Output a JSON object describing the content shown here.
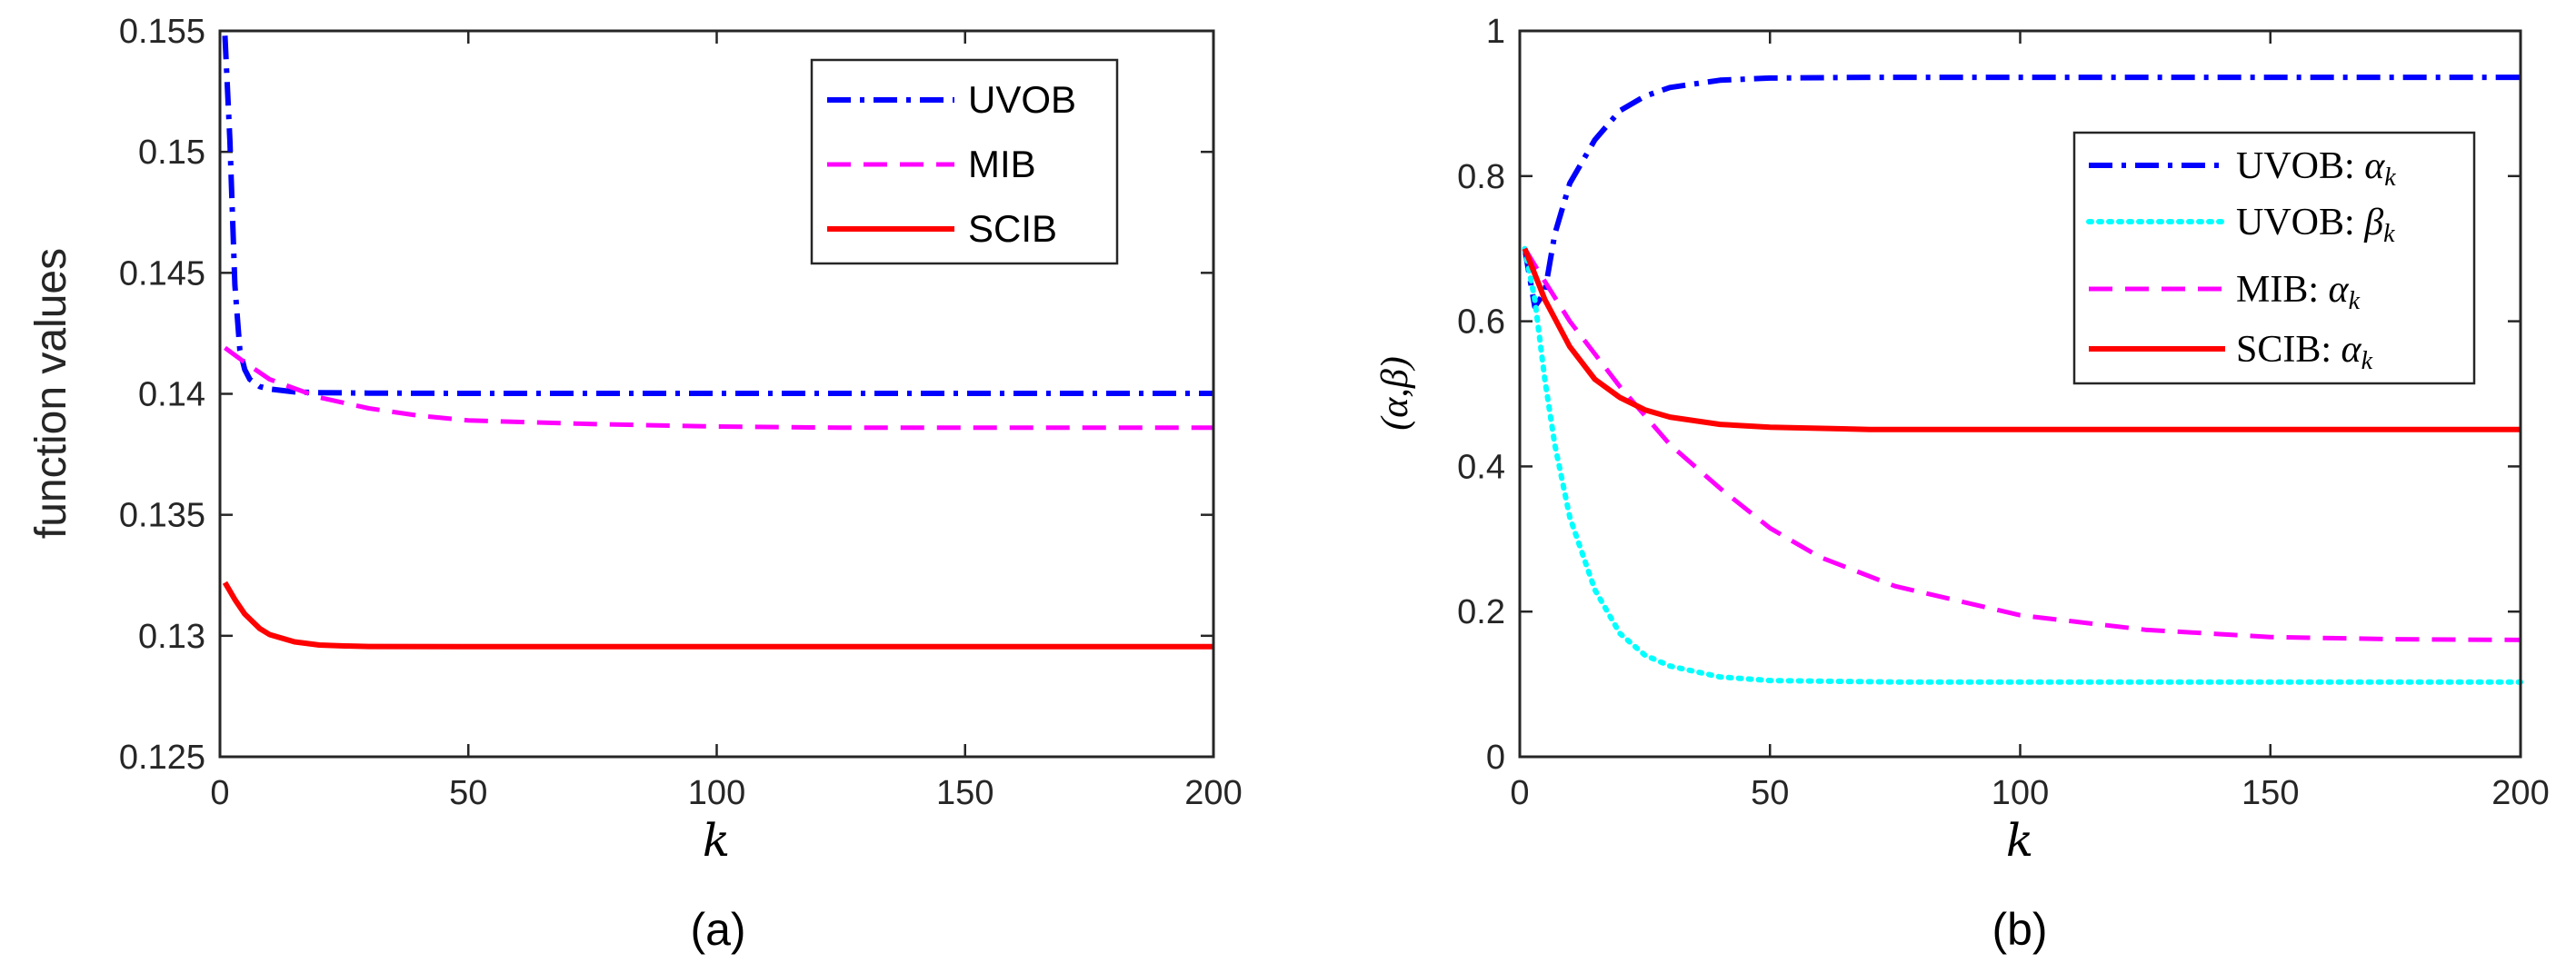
{
  "chart_data": [
    {
      "id": "a",
      "type": "line",
      "caption": "(a)",
      "xlabel": "k",
      "ylabel": "function values",
      "xlim": [
        0,
        200
      ],
      "ylim": [
        0.125,
        0.155
      ],
      "xticks": [
        0,
        50,
        100,
        150,
        200
      ],
      "xtick_labels": [
        "0",
        "50",
        "100",
        "150",
        "200"
      ],
      "yticks": [
        0.125,
        0.13,
        0.135,
        0.14,
        0.145,
        0.15,
        0.155
      ],
      "ytick_labels": [
        "0.125",
        "0.13",
        "0.135",
        "0.14",
        "0.145",
        "0.15",
        "0.155"
      ],
      "legend_position": "top-right",
      "series": [
        {
          "name": "UVOB",
          "legend_label": "UVOB",
          "color": "#0000ff",
          "style": "dashdot",
          "x": [
            1,
            2,
            3,
            4,
            5,
            6,
            8,
            10,
            15,
            20,
            30,
            50,
            100,
            150,
            200
          ],
          "y": [
            0.1548,
            0.1505,
            0.1445,
            0.1418,
            0.141,
            0.1406,
            0.1403,
            0.1402,
            0.14008,
            0.14005,
            0.14003,
            0.14002,
            0.14002,
            0.14002,
            0.14002
          ]
        },
        {
          "name": "MIB",
          "legend_label": "MIB",
          "color": "#ff00ff",
          "style": "dashed",
          "x": [
            1,
            5,
            10,
            20,
            30,
            40,
            50,
            75,
            100,
            125,
            150,
            175,
            200
          ],
          "y": [
            0.1419,
            0.1413,
            0.1406,
            0.13985,
            0.1394,
            0.1391,
            0.1389,
            0.13875,
            0.13865,
            0.1386,
            0.1386,
            0.1386,
            0.1386
          ]
        },
        {
          "name": "SCIB",
          "legend_label": "SCIB",
          "color": "#ff0000",
          "style": "solid",
          "x": [
            1,
            3,
            5,
            8,
            10,
            15,
            20,
            25,
            30,
            50,
            100,
            150,
            200
          ],
          "y": [
            0.1322,
            0.1315,
            0.1309,
            0.1303,
            0.13005,
            0.12975,
            0.12962,
            0.12958,
            0.12956,
            0.12955,
            0.12955,
            0.12955,
            0.12955
          ]
        }
      ]
    },
    {
      "id": "b",
      "type": "line",
      "caption": "(b)",
      "xlabel": "k",
      "ylabel": "(α,β)",
      "xlim": [
        0,
        200
      ],
      "ylim": [
        0,
        1
      ],
      "xticks": [
        0,
        50,
        100,
        150,
        200
      ],
      "xtick_labels": [
        "0",
        "50",
        "100",
        "150",
        "200"
      ],
      "yticks": [
        0,
        0.2,
        0.4,
        0.6,
        0.8,
        1
      ],
      "ytick_labels": [
        "0",
        "0.2",
        "0.4",
        "0.6",
        "0.8",
        "1"
      ],
      "legend_position": "top-right",
      "series": [
        {
          "name": "UVOB alpha",
          "legend_label": "UVOB: ",
          "legend_symbol": "α",
          "legend_sub": "k",
          "color": "#0000ff",
          "style": "dashdot",
          "x": [
            1,
            3,
            5,
            7,
            10,
            15,
            20,
            25,
            30,
            40,
            50,
            70,
            100,
            150,
            200
          ],
          "y": [
            0.7,
            0.62,
            0.64,
            0.72,
            0.79,
            0.85,
            0.89,
            0.91,
            0.922,
            0.932,
            0.935,
            0.936,
            0.936,
            0.936,
            0.936
          ]
        },
        {
          "name": "UVOB beta",
          "legend_label": "UVOB: ",
          "legend_symbol": "β",
          "legend_sub": "k",
          "color": "#00ffff",
          "style": "dotted",
          "x": [
            1,
            3,
            5,
            7,
            10,
            15,
            20,
            25,
            30,
            40,
            50,
            75,
            100,
            150,
            200
          ],
          "y": [
            0.7,
            0.63,
            0.52,
            0.43,
            0.33,
            0.23,
            0.17,
            0.14,
            0.125,
            0.11,
            0.105,
            0.103,
            0.103,
            0.103,
            0.103
          ]
        },
        {
          "name": "MIB alpha",
          "legend_label": "MIB: ",
          "legend_symbol": "α",
          "legend_sub": "k",
          "color": "#ff00ff",
          "style": "dashed",
          "x": [
            1,
            5,
            10,
            20,
            30,
            40,
            50,
            60,
            75,
            100,
            125,
            150,
            175,
            200
          ],
          "y": [
            0.7,
            0.655,
            0.6,
            0.51,
            0.43,
            0.37,
            0.315,
            0.275,
            0.235,
            0.195,
            0.175,
            0.165,
            0.162,
            0.161
          ]
        },
        {
          "name": "SCIB alpha",
          "legend_label": "SCIB: ",
          "legend_symbol": "α",
          "legend_sub": "k",
          "color": "#ff0000",
          "style": "solid",
          "x": [
            1,
            5,
            10,
            15,
            20,
            25,
            30,
            40,
            50,
            70,
            100,
            150,
            200
          ],
          "y": [
            0.7,
            0.63,
            0.565,
            0.52,
            0.495,
            0.478,
            0.468,
            0.458,
            0.454,
            0.451,
            0.451,
            0.451,
            0.451
          ]
        }
      ]
    }
  ]
}
